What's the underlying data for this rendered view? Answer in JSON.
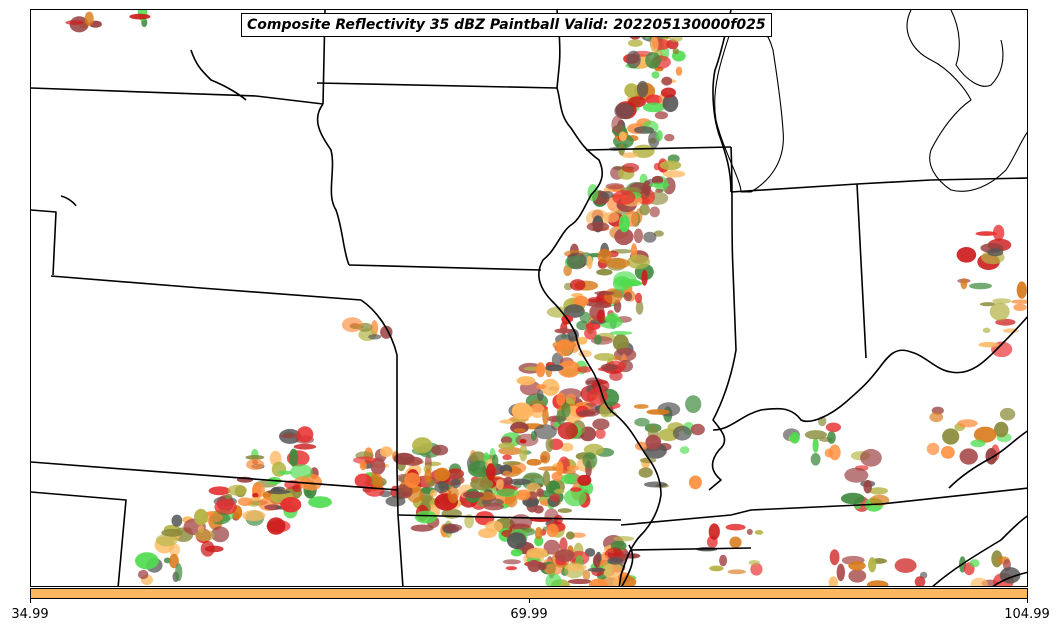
{
  "title": "Composite Reflectivity 35 dBZ Paintball Valid: 202205130000f025",
  "colorbar": {
    "color": "#ffb860",
    "ticks": [
      "34.99",
      "69.99",
      "104.99"
    ]
  },
  "paint_colors": [
    "#a84a4a",
    "#e83030",
    "#ff8c3a",
    "#ffb860",
    "#b4b446",
    "#4fdc4f",
    "#3f8a3f",
    "#555555",
    "#8a8a3a",
    "#9a4040",
    "#cc1a1a",
    "#d97a1a"
  ]
}
